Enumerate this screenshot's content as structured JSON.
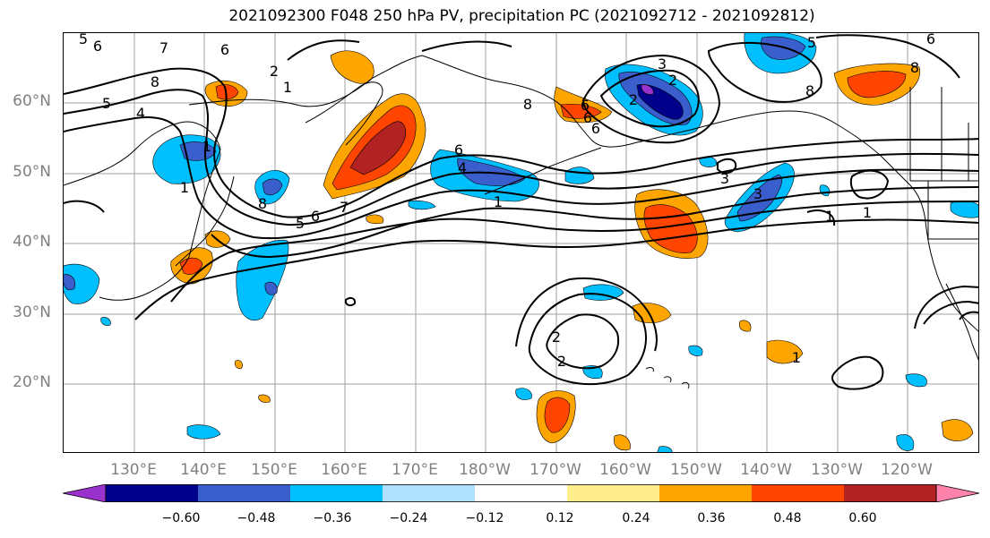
{
  "title": "2021092300 F048 250 hPa PV, precipitation PC (2021092712 - 2021092812)",
  "lat_labels": [
    "60°N",
    "50°N",
    "40°N",
    "30°N",
    "20°N"
  ],
  "lon_labels": [
    "130°E",
    "140°E",
    "150°E",
    "160°E",
    "170°E",
    "180°W",
    "170°W",
    "160°W",
    "150°W",
    "140°W",
    "130°W",
    "120°W"
  ],
  "colorbar": {
    "colors": [
      "#9932cc",
      "#00008b",
      "#3a5fcd",
      "#00bfff",
      "#b0e2ff",
      "#ffffff",
      "#ffec8b",
      "#ffa500",
      "#ff4500",
      "#b22222",
      "#ff82ab"
    ],
    "tick_labels": [
      "−0.60",
      "−0.48",
      "−0.36",
      "−0.24",
      "−0.12",
      "0.12",
      "0.24",
      "0.36",
      "0.48",
      "0.60"
    ]
  },
  "contour_labels": [
    "5",
    "6",
    "7",
    "6",
    "8",
    "5",
    "4",
    "2",
    "1",
    "6",
    "5",
    "8",
    "6",
    "4",
    "6",
    "6",
    "1",
    "7",
    "8",
    "2",
    "2",
    "8",
    "1",
    "3",
    "8",
    "5",
    "6",
    "6",
    "1",
    "1",
    "3",
    "1",
    "3",
    "2",
    "2",
    "1"
  ]
}
